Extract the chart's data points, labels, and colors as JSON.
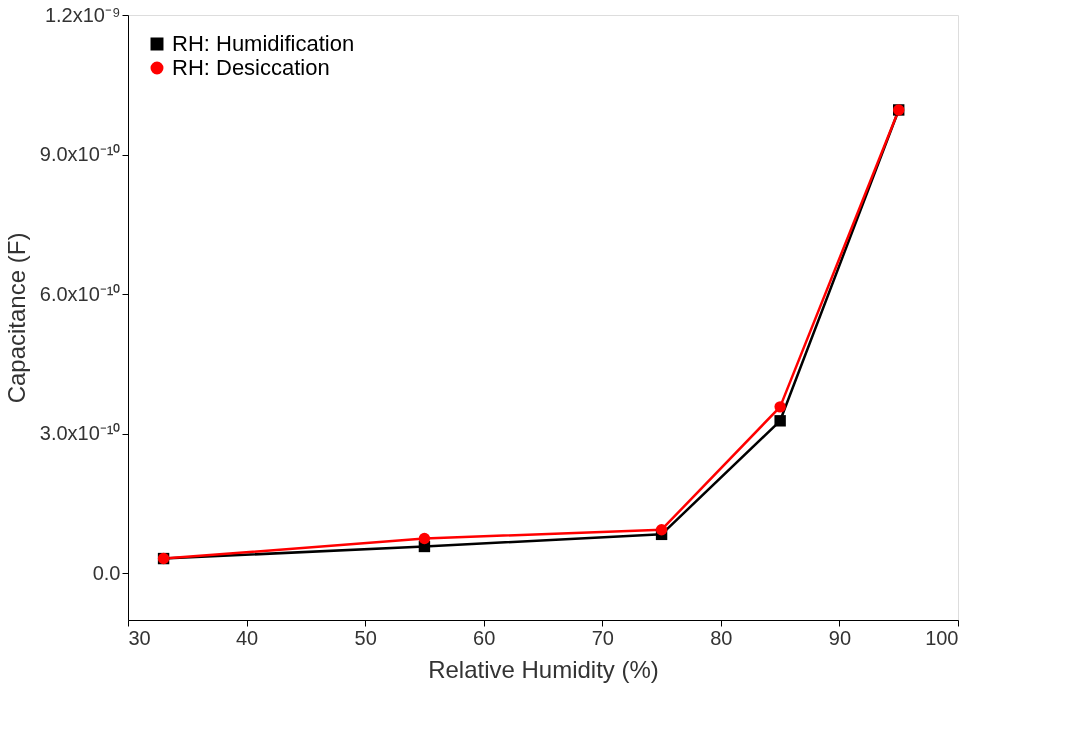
{
  "chart_data": {
    "type": "line",
    "xlabel": "Relative Humidity (%)",
    "ylabel": "Capacitance (F)",
    "x": [
      33,
      55,
      75,
      85,
      95
    ],
    "series": [
      {
        "name": "RH: Humidification",
        "color": "#000000",
        "marker": "square",
        "values": [
          3.2e-11,
          5.8e-11,
          8.4e-11,
          3.28e-10,
          9.96e-10
        ]
      },
      {
        "name": "RH: Desiccation",
        "color": "#ff0000",
        "marker": "circle",
        "values": [
          3.2e-11,
          7.5e-11,
          9.4e-11,
          3.58e-10,
          9.96e-10
        ]
      }
    ],
    "xlim": [
      30,
      100
    ],
    "xticks": [
      30,
      40,
      50,
      60,
      70,
      80,
      90,
      100
    ],
    "ylim": [
      -1e-10,
      1.2e-09
    ],
    "yticks": [
      {
        "value": 0,
        "label": "0.0"
      },
      {
        "value": 3e-10,
        "label": "3.0x10⁻¹⁰"
      },
      {
        "value": 6e-10,
        "label": "6.0x10⁻¹⁰"
      },
      {
        "value": 9e-10,
        "label": "9.0x10⁻¹⁰"
      },
      {
        "value": 1.2e-09,
        "label": "1.2x10⁻⁹"
      }
    ],
    "grid": false,
    "legend": "top left",
    "line_style": "solid"
  }
}
